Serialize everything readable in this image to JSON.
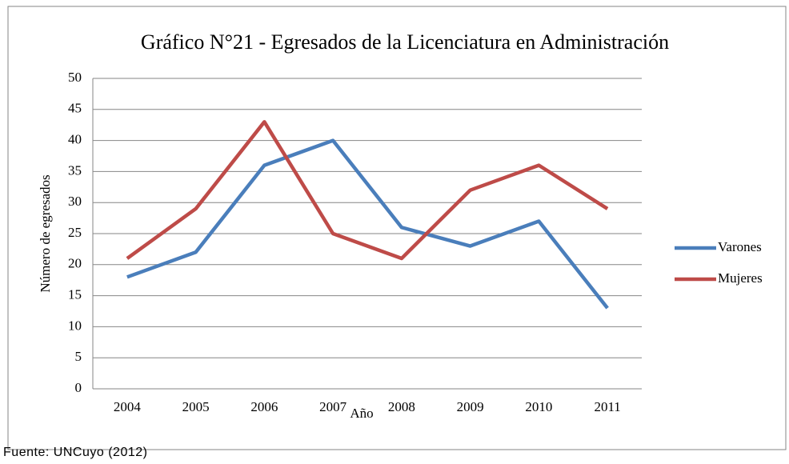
{
  "chart_data": {
    "type": "line",
    "title": "Gráfico N°21 - Egresados de la Licenciatura en Administración",
    "x_label": "Año",
    "y_label": "Número de egresados",
    "source": "Fuente: UNCuyo (2012)",
    "categories": [
      "2004",
      "2005",
      "2006",
      "2007",
      "2008",
      "2009",
      "2010",
      "2011"
    ],
    "series": [
      {
        "name": "Varones",
        "color": "#4a7ebb",
        "values": [
          18,
          22,
          36,
          40,
          26,
          23,
          27,
          13
        ]
      },
      {
        "name": "Mujeres",
        "color": "#be4b48",
        "values": [
          21,
          29,
          43,
          25,
          21,
          32,
          36,
          29
        ]
      }
    ],
    "ylim": [
      0,
      50
    ],
    "yticks": [
      0,
      5,
      10,
      15,
      20,
      25,
      30,
      35,
      40,
      45,
      50
    ],
    "grid": true,
    "legend": "right"
  }
}
